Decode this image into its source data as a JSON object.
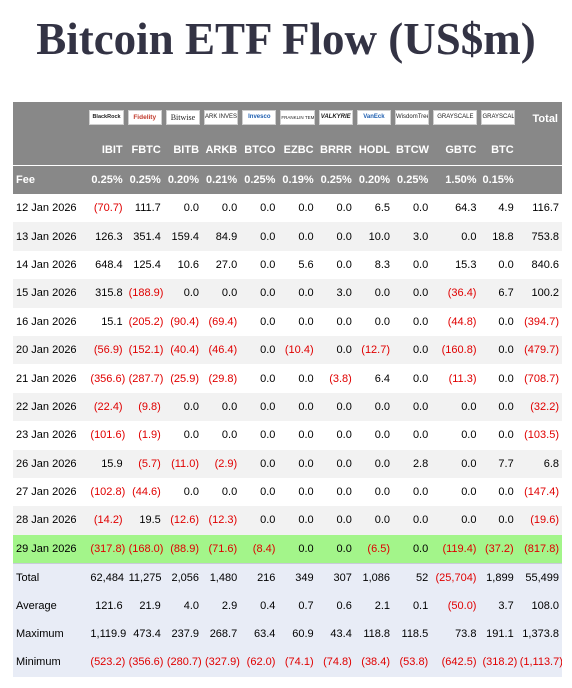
{
  "title": "Bitcoin ETF Flow (US$m)",
  "chart_data": {
    "type": "table",
    "title": "Bitcoin ETF Flow (US$m)",
    "issuers": [
      "BlackRock",
      "Fidelity",
      "Bitwise",
      "ARK INVEST",
      "Invesco",
      "FRANKLIN TEMPLETON",
      "VALKYRIE",
      "VanEck",
      "WisdomTree",
      "GRAYSCALE",
      "GRAYSCALE"
    ],
    "tickers": [
      "IBIT",
      "FBTC",
      "BITB",
      "ARKB",
      "BTCO",
      "EZBC",
      "BRRR",
      "HODL",
      "BTCW",
      "GBTC",
      "BTC"
    ],
    "total_label": "Total",
    "fee_label": "Fee",
    "fees": [
      "0.25%",
      "0.25%",
      "0.20%",
      "0.21%",
      "0.25%",
      "0.19%",
      "0.25%",
      "0.20%",
      "0.25%",
      "1.50%",
      "0.15%"
    ],
    "rows": [
      {
        "date": "12 Jan 2026",
        "values": [
          "(70.7)",
          "111.7",
          "0.0",
          "0.0",
          "0.0",
          "0.0",
          "0.0",
          "6.5",
          "0.0",
          "64.3",
          "4.9"
        ],
        "total": "116.7"
      },
      {
        "date": "13 Jan 2026",
        "values": [
          "126.3",
          "351.4",
          "159.4",
          "84.9",
          "0.0",
          "0.0",
          "0.0",
          "10.0",
          "3.0",
          "0.0",
          "18.8"
        ],
        "total": "753.8"
      },
      {
        "date": "14 Jan 2026",
        "values": [
          "648.4",
          "125.4",
          "10.6",
          "27.0",
          "0.0",
          "5.6",
          "0.0",
          "8.3",
          "0.0",
          "15.3",
          "0.0"
        ],
        "total": "840.6"
      },
      {
        "date": "15 Jan 2026",
        "values": [
          "315.8",
          "(188.9)",
          "0.0",
          "0.0",
          "0.0",
          "0.0",
          "3.0",
          "0.0",
          "0.0",
          "(36.4)",
          "6.7"
        ],
        "total": "100.2"
      },
      {
        "date": "16 Jan 2026",
        "values": [
          "15.1",
          "(205.2)",
          "(90.4)",
          "(69.4)",
          "0.0",
          "0.0",
          "0.0",
          "0.0",
          "0.0",
          "(44.8)",
          "0.0"
        ],
        "total": "(394.7)"
      },
      {
        "date": "20 Jan 2026",
        "values": [
          "(56.9)",
          "(152.1)",
          "(40.4)",
          "(46.4)",
          "0.0",
          "(10.4)",
          "0.0",
          "(12.7)",
          "0.0",
          "(160.8)",
          "0.0"
        ],
        "total": "(479.7)"
      },
      {
        "date": "21 Jan 2026",
        "values": [
          "(356.6)",
          "(287.7)",
          "(25.9)",
          "(29.8)",
          "0.0",
          "0.0",
          "(3.8)",
          "6.4",
          "0.0",
          "(11.3)",
          "0.0"
        ],
        "total": "(708.7)"
      },
      {
        "date": "22 Jan 2026",
        "values": [
          "(22.4)",
          "(9.8)",
          "0.0",
          "0.0",
          "0.0",
          "0.0",
          "0.0",
          "0.0",
          "0.0",
          "0.0",
          "0.0"
        ],
        "total": "(32.2)"
      },
      {
        "date": "23 Jan 2026",
        "values": [
          "(101.6)",
          "(1.9)",
          "0.0",
          "0.0",
          "0.0",
          "0.0",
          "0.0",
          "0.0",
          "0.0",
          "0.0",
          "0.0"
        ],
        "total": "(103.5)"
      },
      {
        "date": "26 Jan 2026",
        "values": [
          "15.9",
          "(5.7)",
          "(11.0)",
          "(2.9)",
          "0.0",
          "0.0",
          "0.0",
          "0.0",
          "2.8",
          "0.0",
          "7.7"
        ],
        "total": "6.8"
      },
      {
        "date": "27 Jan 2026",
        "values": [
          "(102.8)",
          "(44.6)",
          "0.0",
          "0.0",
          "0.0",
          "0.0",
          "0.0",
          "0.0",
          "0.0",
          "0.0",
          "0.0"
        ],
        "total": "(147.4)"
      },
      {
        "date": "28 Jan 2026",
        "values": [
          "(14.2)",
          "19.5",
          "(12.6)",
          "(12.3)",
          "0.0",
          "0.0",
          "0.0",
          "0.0",
          "0.0",
          "0.0",
          "0.0"
        ],
        "total": "(19.6)"
      },
      {
        "date": "29 Jan 2026",
        "values": [
          "(317.8)",
          "(168.0)",
          "(88.9)",
          "(71.6)",
          "(8.4)",
          "0.0",
          "0.0",
          "(6.5)",
          "0.0",
          "(119.4)",
          "(37.2)"
        ],
        "total": "(817.8)",
        "highlight": true
      }
    ],
    "stats": [
      {
        "label": "Total",
        "values": [
          "62,484",
          "11,275",
          "2,056",
          "1,480",
          "216",
          "349",
          "307",
          "1,086",
          "52",
          "(25,704)",
          "1,899"
        ],
        "total": "55,499"
      },
      {
        "label": "Average",
        "values": [
          "121.6",
          "21.9",
          "4.0",
          "2.9",
          "0.4",
          "0.7",
          "0.6",
          "2.1",
          "0.1",
          "(50.0)",
          "3.7"
        ],
        "total": "108.0"
      },
      {
        "label": "Maximum",
        "values": [
          "1,119.9",
          "473.4",
          "237.9",
          "268.7",
          "63.4",
          "60.9",
          "43.4",
          "118.8",
          "118.5",
          "73.8",
          "191.1"
        ],
        "total": "1,373.8"
      },
      {
        "label": "Minimum",
        "values": [
          "(523.2)",
          "(356.6)",
          "(280.7)",
          "(327.9)",
          "(62.0)",
          "(74.1)",
          "(74.8)",
          "(38.4)",
          "(53.8)",
          "(642.5)",
          "(318.2)"
        ],
        "total": "(1,113.7)"
      }
    ]
  },
  "colors": {
    "header_bg": "#888888",
    "negative": "#e00000",
    "highlight_row": "#a3f58a",
    "stats_bg": "#e8ecf6",
    "title": "#333344"
  }
}
